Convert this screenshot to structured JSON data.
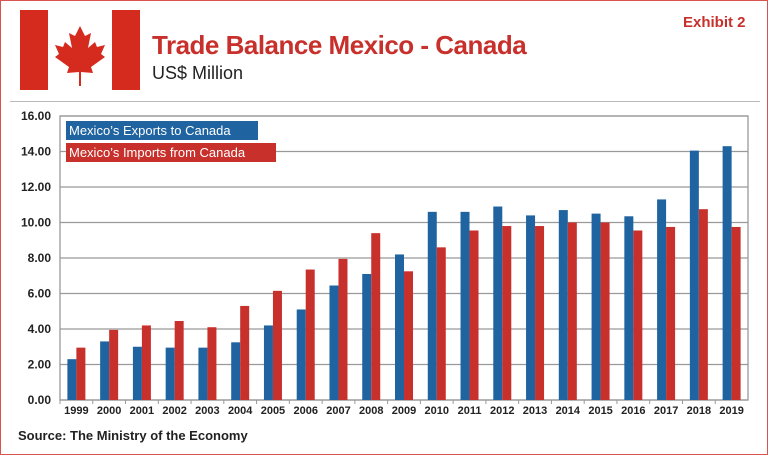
{
  "header": {
    "title": "Trade Balance Mexico - Canada",
    "subtitle": "US$ Million",
    "exhibit": "Exhibit 2"
  },
  "flag": {
    "icon": "canada-flag-maple-leaf",
    "red": "#d52b1e"
  },
  "footer": {
    "source": "Source: The Ministry of the Economy"
  },
  "chart_data": {
    "type": "bar",
    "title": "Trade Balance Mexico - Canada",
    "ylabel": "US$ Million",
    "ylim": [
      0,
      16
    ],
    "yticks": [
      "0.00",
      "2.00",
      "4.00",
      "6.00",
      "8.00",
      "10.00",
      "12.00",
      "14.00",
      "16.00"
    ],
    "grid": true,
    "legend": "top-left",
    "categories": [
      "1999",
      "2000",
      "2001",
      "2002",
      "2003",
      "2004",
      "2005",
      "2006",
      "2007",
      "2008",
      "2009",
      "2010",
      "2011",
      "2012",
      "2013",
      "2014",
      "2015",
      "2016",
      "2017",
      "2018",
      "2019"
    ],
    "series": [
      {
        "name": "Mexico’s Exports to Canada",
        "color": "#1f64a0",
        "values": [
          2.3,
          3.3,
          3.0,
          2.95,
          2.95,
          3.25,
          4.2,
          5.1,
          6.45,
          7.1,
          8.2,
          10.6,
          10.6,
          10.9,
          10.4,
          10.7,
          10.5,
          10.35,
          11.3,
          14.05,
          14.3
        ]
      },
      {
        "name": "Mexico’s Imports from Canada",
        "color": "#c8302c",
        "values": [
          2.95,
          3.95,
          4.2,
          4.45,
          4.1,
          5.3,
          6.15,
          7.35,
          7.95,
          9.4,
          7.25,
          8.6,
          9.55,
          9.8,
          9.8,
          10.0,
          10.0,
          9.55,
          9.75,
          10.75,
          9.75
        ]
      }
    ]
  }
}
